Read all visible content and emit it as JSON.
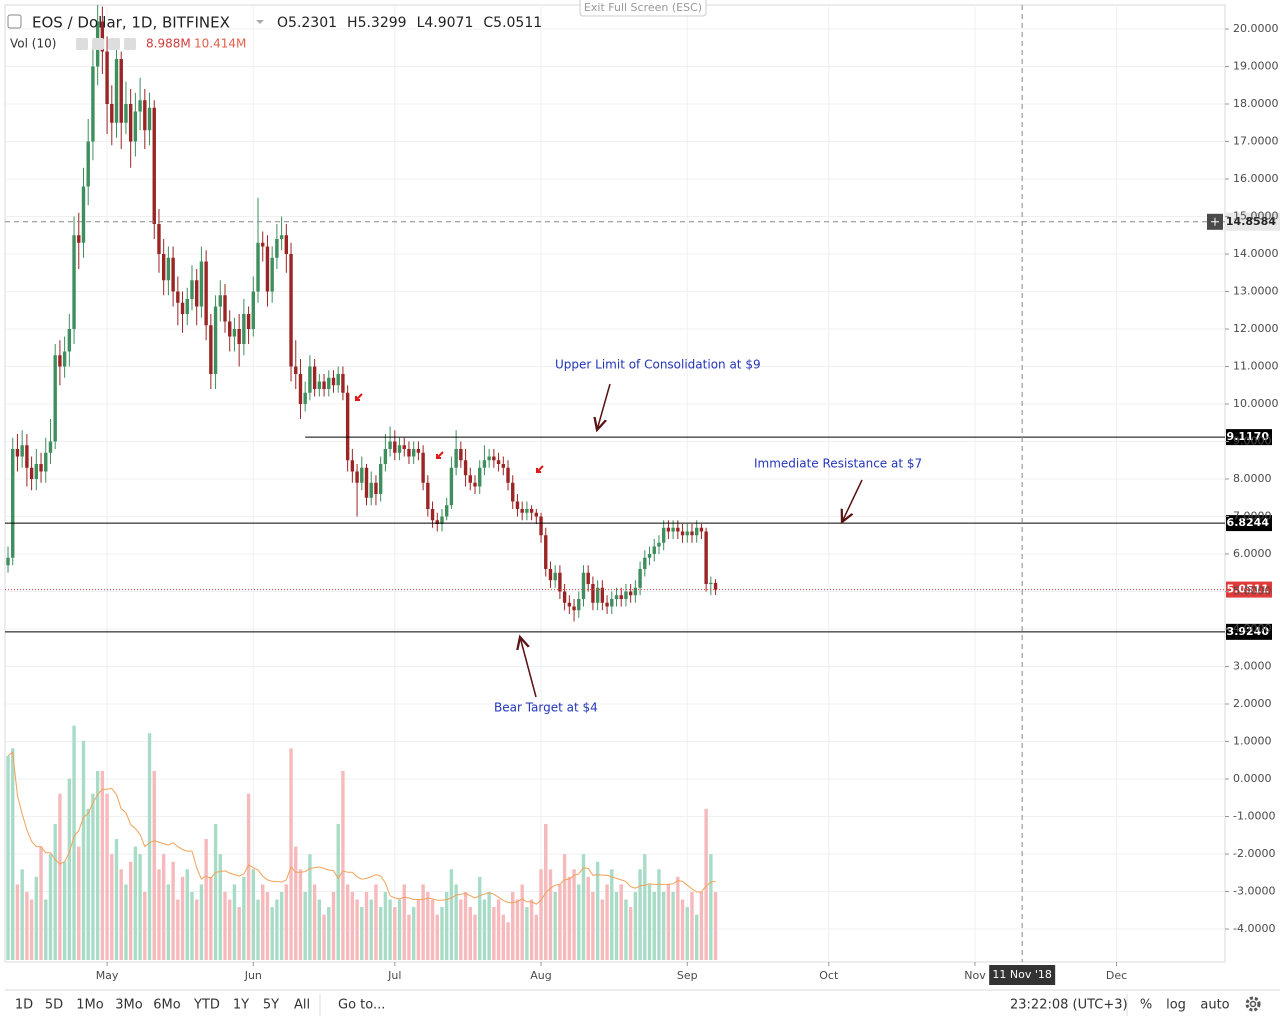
{
  "ui": {
    "exit_fullscreen": "Exit Full Screen (ESC)",
    "toolbar": {
      "ranges": [
        "1D",
        "5D",
        "1Mo",
        "3Mo",
        "6Mo",
        "YTD",
        "1Y",
        "5Y",
        "All"
      ],
      "goto": "Go to...",
      "clock": "23:22:08 (UTC+3)",
      "percent": "%",
      "log": "log",
      "auto": "auto"
    }
  },
  "chart_data": {
    "type": "candlestick",
    "title": "EOS / Dollar, 1D, BITFINEX",
    "ohlc_legend": [
      {
        "prefix": "O",
        "value": 5.2301
      },
      {
        "prefix": "H",
        "value": 5.3299
      },
      {
        "prefix": "L",
        "value": 4.9071
      },
      {
        "prefix": "C",
        "value": 5.0511
      }
    ],
    "up_color": "#3e8e5e",
    "down_color": "#9b2424",
    "grid": true,
    "xlim": [
      -0.64,
      258
    ],
    "xticks": [
      {
        "value": 21,
        "label": "May"
      },
      {
        "value": 52,
        "label": "Jun"
      },
      {
        "value": 82,
        "label": "Jul"
      },
      {
        "value": 113,
        "label": "Aug"
      },
      {
        "value": 144,
        "label": "Sep"
      },
      {
        "value": 174,
        "label": "Oct"
      },
      {
        "value": 205,
        "label": "Nov"
      },
      {
        "value": 235,
        "label": "Dec"
      }
    ],
    "ylim": [
      -4.88,
      20.64
    ],
    "yticks": [
      {
        "value": -4,
        "label": "-4.0000"
      },
      {
        "value": -3,
        "label": "-3.0000"
      },
      {
        "value": -2,
        "label": "-2.0000"
      },
      {
        "value": -1,
        "label": "-1.0000"
      },
      {
        "value": 0,
        "label": "0.0000"
      },
      {
        "value": 1,
        "label": "1.0000"
      },
      {
        "value": 2,
        "label": "2.0000"
      },
      {
        "value": 3,
        "label": "3.0000"
      },
      {
        "value": 4,
        "label": "4.0000"
      },
      {
        "value": 5,
        "label": "5.0000"
      },
      {
        "value": 6,
        "label": "6.0000"
      },
      {
        "value": 7,
        "label": "7.0000"
      },
      {
        "value": 8,
        "label": "8.0000"
      },
      {
        "value": 9,
        "label": "9.0000"
      },
      {
        "value": 10,
        "label": "10.0000"
      },
      {
        "value": 11,
        "label": "11.0000"
      },
      {
        "value": 12,
        "label": "12.0000"
      },
      {
        "value": 13,
        "label": "13.0000"
      },
      {
        "value": 14,
        "label": "14.0000"
      },
      {
        "value": 15,
        "label": "15.0000"
      },
      {
        "value": 16,
        "label": "16.0000"
      },
      {
        "value": 17,
        "label": "17.0000"
      },
      {
        "value": 18,
        "label": "18.0000"
      },
      {
        "value": 19,
        "label": "19.0000"
      },
      {
        "value": 20,
        "label": "20.0000"
      }
    ],
    "open": [
      5.7,
      5.9,
      8.8,
      8.6,
      8.9,
      8.3,
      8.0,
      8.4,
      8.2,
      8.7,
      9.0,
      11.3,
      11.0,
      11.4,
      12.0,
      14.5,
      14.3,
      15.8,
      17.0,
      19.0,
      20.2,
      19.4,
      18.0,
      17.5,
      19.2,
      17.5,
      18.0,
      17.0,
      17.8,
      18.1,
      17.3,
      17.9,
      14.8,
      14.0,
      13.3,
      13.9,
      13.0,
      12.7,
      12.4,
      12.8,
      13.3,
      12.6,
      13.8,
      12.1,
      10.8,
      12.6,
      12.9,
      12.2,
      11.8,
      12.0,
      11.6,
      12.4,
      12.0,
      13.0,
      14.3,
      14.2,
      13.0,
      13.9,
      14.4,
      14.5,
      14.0,
      11.0,
      10.8,
      10.0,
      10.3,
      11.0,
      10.4,
      10.6,
      10.4,
      10.7,
      10.5,
      10.8,
      10.3,
      8.5,
      8.2,
      7.9,
      8.3,
      7.5,
      7.9,
      7.6,
      8.4,
      8.8,
      9.0,
      8.7,
      8.9,
      8.8,
      8.6,
      8.8,
      8.7,
      7.9,
      7.2,
      6.9,
      6.8,
      7.0,
      7.3,
      8.3,
      8.8,
      8.5,
      8.1,
      7.9,
      7.8,
      8.3,
      8.5,
      8.6,
      8.5,
      8.4,
      8.3,
      7.9,
      7.4,
      7.2,
      7.1,
      7.2,
      7.1,
      7.0,
      6.5,
      5.6,
      5.3,
      5.5,
      5.0,
      4.7,
      4.6,
      4.5,
      4.8,
      5.5,
      5.2,
      4.7,
      5.1,
      4.7,
      4.6,
      4.8,
      4.9,
      4.8,
      5.0,
      4.9,
      5.1,
      5.6,
      5.9,
      6.0,
      6.2,
      6.3,
      6.7,
      6.6,
      6.7,
      6.6,
      6.5,
      6.6,
      6.5,
      6.7,
      6.6,
      5.2,
      5.2301
    ],
    "high": [
      6.2,
      9.1,
      9.2,
      9.3,
      9.2,
      8.6,
      8.8,
      8.7,
      9.1,
      9.6,
      11.6,
      11.7,
      11.8,
      12.4,
      15.0,
      15.1,
      16.3,
      17.6,
      19.6,
      21.0,
      20.6,
      19.8,
      18.5,
      19.5,
      19.4,
      18.6,
      18.4,
      18.3,
      18.7,
      18.4,
      18.3,
      18.1,
      15.2,
      14.4,
      14.2,
      14.2,
      13.4,
      13.0,
      13.1,
      13.7,
      13.6,
      14.2,
      14.1,
      12.4,
      12.9,
      13.3,
      13.2,
      12.5,
      12.3,
      12.4,
      12.8,
      12.6,
      13.4,
      15.5,
      14.6,
      14.5,
      14.2,
      14.8,
      15.0,
      14.8,
      14.3,
      11.7,
      11.2,
      10.6,
      11.3,
      11.2,
      10.8,
      10.8,
      10.9,
      10.9,
      11.0,
      11.0,
      10.5,
      8.8,
      8.4,
      8.6,
      8.4,
      8.2,
      8.1,
      8.6,
      9.2,
      9.4,
      9.3,
      9.1,
      9.1,
      9.0,
      9.0,
      9.0,
      8.9,
      8.1,
      7.4,
      7.1,
      7.2,
      7.5,
      8.6,
      9.3,
      9.0,
      8.8,
      8.3,
      8.1,
      8.5,
      8.9,
      8.8,
      8.8,
      8.7,
      8.6,
      8.5,
      8.1,
      7.6,
      7.4,
      7.4,
      7.3,
      7.2,
      7.1,
      6.7,
      5.8,
      5.7,
      5.7,
      5.2,
      4.9,
      4.8,
      5.0,
      5.7,
      5.7,
      5.4,
      5.3,
      5.3,
      4.9,
      5.0,
      5.1,
      5.1,
      5.2,
      5.2,
      5.3,
      5.8,
      6.1,
      6.2,
      6.4,
      6.5,
      6.9,
      6.9,
      6.9,
      6.9,
      6.8,
      6.8,
      6.8,
      6.9,
      6.8,
      6.7,
      5.4,
      5.3299
    ],
    "low": [
      5.5,
      5.7,
      8.2,
      8.3,
      7.8,
      7.7,
      7.7,
      7.9,
      7.9,
      8.4,
      8.8,
      10.5,
      10.7,
      11.0,
      11.6,
      13.6,
      13.9,
      15.3,
      16.5,
      18.5,
      18.8,
      17.2,
      16.9,
      17.1,
      16.8,
      17.2,
      16.3,
      16.6,
      17.3,
      16.8,
      16.9,
      14.4,
      13.5,
      12.9,
      12.9,
      12.6,
      12.1,
      11.9,
      12.1,
      12.5,
      12.1,
      12.3,
      11.7,
      10.4,
      10.4,
      12.2,
      11.9,
      11.4,
      11.4,
      11.0,
      11.3,
      11.6,
      11.8,
      12.7,
      13.8,
      12.6,
      12.7,
      13.6,
      14.1,
      13.5,
      10.6,
      10.4,
      9.6,
      9.8,
      10.1,
      10.2,
      10.2,
      10.2,
      10.2,
      10.3,
      10.3,
      10.1,
      8.2,
      7.9,
      7.0,
      7.7,
      7.3,
      7.3,
      7.3,
      7.4,
      8.2,
      8.6,
      8.5,
      8.5,
      8.6,
      8.4,
      8.4,
      8.5,
      7.7,
      7.0,
      6.7,
      6.6,
      6.6,
      6.9,
      7.2,
      8.1,
      8.3,
      7.8,
      7.7,
      7.6,
      7.6,
      8.1,
      8.3,
      8.3,
      8.2,
      8.1,
      7.7,
      7.2,
      7.0,
      6.9,
      6.9,
      6.9,
      6.8,
      6.3,
      5.4,
      5.1,
      5.1,
      4.8,
      4.5,
      4.4,
      4.2,
      4.3,
      4.6,
      5.0,
      4.5,
      4.5,
      4.5,
      4.4,
      4.4,
      4.6,
      4.6,
      4.6,
      4.7,
      4.7,
      4.9,
      5.4,
      5.7,
      5.8,
      6.0,
      6.1,
      6.4,
      6.4,
      6.4,
      6.3,
      6.3,
      6.3,
      6.3,
      6.4,
      5.0,
      4.9,
      4.9071
    ],
    "close": [
      5.9,
      8.8,
      8.6,
      8.9,
      8.3,
      8.0,
      8.4,
      8.2,
      8.7,
      9.0,
      11.3,
      11.0,
      11.4,
      12.0,
      14.5,
      14.3,
      15.8,
      17.0,
      19.0,
      20.2,
      19.4,
      18.0,
      17.5,
      19.2,
      17.5,
      18.0,
      17.0,
      17.8,
      18.1,
      17.3,
      17.9,
      14.8,
      14.0,
      13.3,
      13.9,
      13.0,
      12.7,
      12.4,
      12.8,
      13.3,
      12.6,
      13.8,
      12.1,
      10.8,
      12.6,
      12.9,
      12.2,
      11.8,
      12.0,
      11.6,
      12.4,
      12.0,
      13.0,
      14.3,
      14.2,
      13.0,
      13.9,
      14.4,
      14.5,
      14.0,
      11.0,
      10.8,
      10.0,
      10.3,
      11.0,
      10.4,
      10.6,
      10.4,
      10.7,
      10.5,
      10.8,
      10.3,
      8.5,
      8.2,
      7.9,
      8.3,
      7.5,
      7.9,
      7.6,
      8.4,
      8.8,
      9.0,
      8.7,
      8.9,
      8.8,
      8.6,
      8.8,
      8.7,
      7.9,
      7.2,
      6.9,
      6.8,
      7.0,
      7.3,
      8.3,
      8.8,
      8.5,
      8.1,
      7.9,
      7.8,
      8.3,
      8.5,
      8.6,
      8.5,
      8.4,
      8.3,
      7.9,
      7.4,
      7.2,
      7.1,
      7.2,
      7.1,
      7.0,
      6.5,
      5.6,
      5.3,
      5.5,
      5.0,
      4.7,
      4.6,
      4.5,
      4.8,
      5.5,
      5.2,
      4.7,
      5.1,
      4.7,
      4.6,
      4.8,
      4.9,
      4.8,
      5.0,
      4.9,
      5.1,
      5.6,
      5.9,
      6.0,
      6.2,
      6.3,
      6.7,
      6.6,
      6.7,
      6.6,
      6.5,
      6.6,
      6.5,
      6.7,
      6.6,
      5.2,
      5.2301,
      5.0511
    ],
    "volume": {
      "title": "Vol (10)",
      "up_color": "#a9dcc6",
      "down_color": "#f6b9bc",
      "ma_color": "#f0a25a",
      "ylim": [
        0,
        31.75
      ],
      "values": [
        27,
        28,
        10,
        12,
        9,
        8,
        11,
        15,
        8,
        14,
        18,
        22,
        13,
        24,
        31,
        15,
        29,
        20,
        22,
        25,
        25,
        22,
        14,
        16,
        12,
        10,
        13,
        15,
        14,
        9,
        30,
        25,
        12,
        14,
        10,
        13,
        8,
        11,
        12,
        9,
        8,
        10,
        16,
        11,
        18,
        14,
        9,
        8,
        10,
        7,
        11,
        22,
        12,
        8,
        10,
        9,
        7,
        8,
        9,
        10,
        28,
        15,
        12,
        9,
        14,
        10,
        8,
        6,
        7,
        9,
        18,
        25,
        10,
        9,
        8,
        7,
        9,
        8,
        10,
        7,
        9,
        8,
        7,
        8,
        10,
        6,
        7,
        8,
        10,
        9,
        8,
        6,
        7,
        9,
        12,
        10,
        8,
        9,
        7,
        6,
        11,
        8,
        9,
        7,
        8,
        6,
        5,
        9,
        8,
        10,
        7,
        8,
        6,
        12,
        18,
        12,
        9,
        10,
        14,
        11,
        12,
        10,
        14,
        11,
        9,
        13,
        8,
        10,
        12,
        9,
        10,
        8,
        7,
        9,
        12,
        14,
        10,
        9,
        12,
        9,
        10,
        9,
        11,
        8,
        7,
        9,
        6,
        9,
        20,
        14,
        8.988
      ],
      "ma": [
        27,
        27.5,
        21.7,
        19.3,
        17.2,
        15.7,
        15.0,
        15.0,
        14.2,
        14.2,
        13.3,
        12.7,
        13.0,
        14.2,
        16.4,
        17.1,
        18.9,
        19.4,
        20.8,
        21.9,
        22.6,
        22.6,
        22.7,
        21.9,
        20.0,
        19.5,
        17.9,
        17.4,
        16.6,
        15.0,
        15.5,
        15.8,
        15.6,
        15.4,
        15.2,
        15.5,
        15.0,
        14.6,
        14.4,
        14.4,
        12.2,
        10.7,
        11.1,
        10.8,
        11.6,
        11.7,
        11.8,
        11.5,
        11.3,
        11.1,
        11.4,
        12.6,
        12.2,
        11.9,
        11.1,
        10.6,
        10.4,
        10.4,
        10.3,
        10.6,
        12.3,
        11.6,
        11.6,
        11.7,
        12.1,
        12.2,
        12.3,
        12.1,
        11.9,
        11.8,
        10.8,
        11.8,
        11.6,
        11.6,
        11.0,
        10.7,
        10.8,
        11.0,
        11.3,
        11.1,
        10.2,
        8.5,
        8.2,
        8.1,
        8.3,
        8.2,
        8.0,
        8.0,
        8.0,
        8.2,
        8.1,
        7.9,
        7.9,
        8.0,
        8.2,
        8.6,
        8.7,
        8.8,
        8.5,
        8.2,
        8.5,
        8.7,
        8.9,
        8.7,
        8.3,
        7.9,
        7.6,
        7.6,
        7.7,
        8.1,
        7.7,
        7.7,
        7.4,
        7.9,
        8.9,
        9.5,
        9.9,
        10.0,
        10.6,
        10.7,
        11.2,
        11.4,
        12.2,
        12.1,
        11.2,
        11.3,
        11.2,
        11.2,
        11.0,
        10.8,
        10.6,
        10.4,
        9.7,
        9.5,
        9.8,
        9.9,
        10.1,
        10.0,
        10.0,
        10.0,
        10.0,
        10.1,
        10.5,
        10.4,
        9.9,
        9.4,
        9.0,
        9.0,
        9.8,
        10.3,
        10.414
      ],
      "last": {
        "value": 8.988,
        "label": "8.988M"
      },
      "ma_last": {
        "value": 10.414,
        "label": "10.414M"
      }
    },
    "levels": [
      {
        "value": 9.117,
        "label": "9.1170",
        "from": 63
      },
      {
        "value": 6.8244,
        "label": "6.8244",
        "from": -0.64
      },
      {
        "value": 3.924,
        "label": "3.9240",
        "from": -0.64
      }
    ],
    "last_price": {
      "value": 5.0511,
      "label": "5.0511",
      "color": "#e03a3a"
    },
    "crosshair": {
      "x": {
        "value": 215,
        "label": "11 Nov '18"
      },
      "y": {
        "value": 14.8584,
        "label": "14.8584"
      }
    },
    "annotations": [
      {
        "text": "Upper Limit of Consolidation at $9"
      },
      {
        "text": "Immediate Resistance at $7"
      },
      {
        "text": "Bear Target at $4"
      }
    ],
    "annotation_color": "#2436b8"
  }
}
